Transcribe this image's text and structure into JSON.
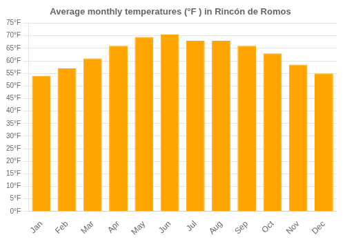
{
  "chart_data": {
    "type": "bar",
    "title": "Average monthly temperatures (°F ) in Rincón de Romos",
    "categories": [
      "Jan",
      "Feb",
      "Mar",
      "Apr",
      "May",
      "Jun",
      "Jul",
      "Aug",
      "Sep",
      "Oct",
      "Nov",
      "Dec"
    ],
    "values": [
      54,
      57,
      61,
      66,
      69.5,
      70.5,
      68,
      68,
      66,
      63,
      58.5,
      55
    ],
    "color": "#FFA500",
    "ylim": [
      0,
      75
    ],
    "yticks": [
      {
        "value": 0,
        "label": "0°F"
      },
      {
        "value": 5,
        "label": "5°F"
      },
      {
        "value": 10,
        "label": "10°F"
      },
      {
        "value": 15,
        "label": "15°F"
      },
      {
        "value": 20,
        "label": "20°F"
      },
      {
        "value": 25,
        "label": "25°F"
      },
      {
        "value": 30,
        "label": "30°F"
      },
      {
        "value": 35,
        "label": "35°F"
      },
      {
        "value": 40,
        "label": "40°F"
      },
      {
        "value": 45,
        "label": "45°F"
      },
      {
        "value": 50,
        "label": "50°F"
      },
      {
        "value": 55,
        "label": "55°F"
      },
      {
        "value": 60,
        "label": "60°F"
      },
      {
        "value": 65,
        "label": "65°F"
      },
      {
        "value": 70,
        "label": "70°F"
      },
      {
        "value": 75,
        "label": "75°F"
      }
    ],
    "grid": true
  }
}
